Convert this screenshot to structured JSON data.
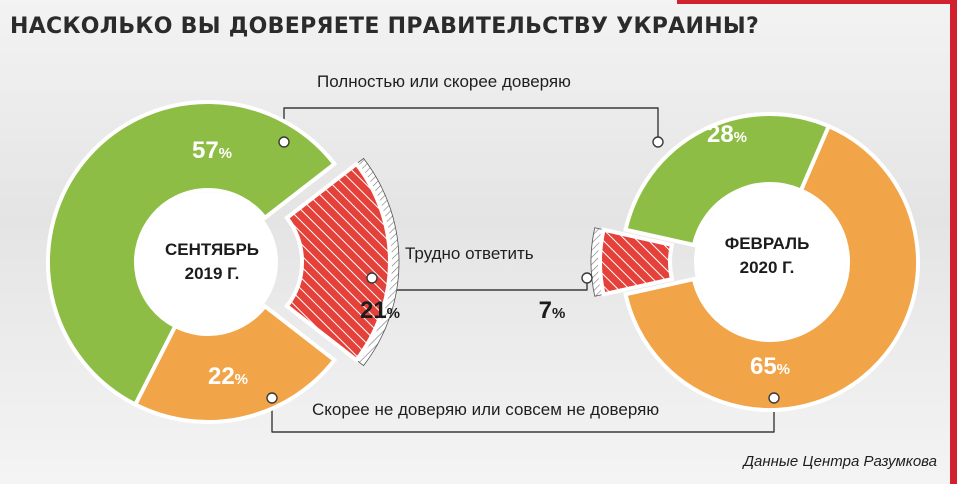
{
  "title": "НАСКОЛЬКО ВЫ ДОВЕРЯЕТЕ ПРАВИТЕЛЬСТВУ УКРАИНЫ?",
  "source": "Данные Центра Разумкова",
  "bands": {
    "trust": "Полностью или скорее доверяю",
    "unsure": "Трудно ответить",
    "distrust": "Скорее не доверяю или совсем не доверяю"
  },
  "colors": {
    "trust": "#8dbd44",
    "distrust": "#f1a548",
    "unsure": "#e4413a",
    "accent": "#d3202f"
  },
  "chart_data": [
    {
      "type": "pie",
      "period_line1": "СЕНТЯБРЬ",
      "period_line2": "2019 Г.",
      "categories": [
        "Полностью или скорее доверяю",
        "Трудно ответить",
        "Скорее не доверяю или совсем не доверяю"
      ],
      "values": [
        57,
        21,
        22
      ],
      "labels": [
        "57",
        "21",
        "22"
      ]
    },
    {
      "type": "pie",
      "period_line1": "ФЕВРАЛЬ",
      "period_line2": "2020 Г.",
      "categories": [
        "Полностью или скорее доверяю",
        "Трудно ответить",
        "Скорее не доверяю или совсем не доверяю"
      ],
      "values": [
        28,
        7,
        65
      ],
      "labels": [
        "28",
        "7",
        "65"
      ]
    }
  ],
  "unit": "%"
}
